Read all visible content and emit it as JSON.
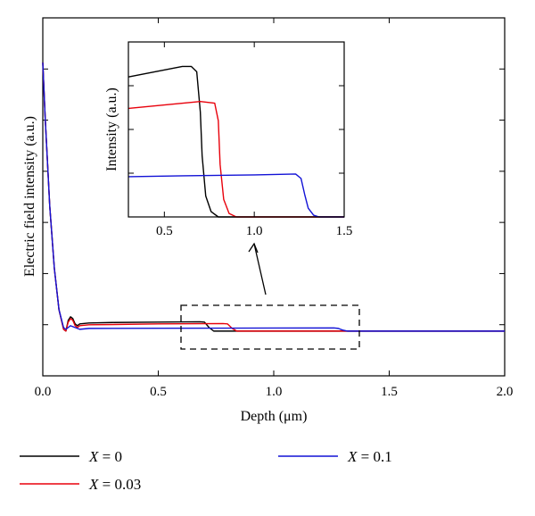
{
  "chart_data": [
    {
      "type": "line",
      "xlabel": "Depth (μm)",
      "ylabel": "Electric field intensity (a.u.)",
      "xlim": [
        0,
        2.0
      ],
      "ylim": [
        -0.25,
        1.75
      ],
      "xticks": [
        "0.0",
        "0.5",
        "1.0",
        "1.5",
        "2.0"
      ],
      "grid": false,
      "legend_placement": "below",
      "series": [
        {
          "name": "X = 0",
          "color": "#000000",
          "points": [
            [
              0,
              1.5
            ],
            [
              0.01,
              1.2
            ],
            [
              0.03,
              0.7
            ],
            [
              0.05,
              0.35
            ],
            [
              0.07,
              0.12
            ],
            [
              0.09,
              0.01
            ],
            [
              0.1,
              0.0
            ],
            [
              0.11,
              0.06
            ],
            [
              0.12,
              0.08
            ],
            [
              0.13,
              0.07
            ],
            [
              0.14,
              0.04
            ],
            [
              0.15,
              0.03
            ],
            [
              0.16,
              0.04
            ],
            [
              0.2,
              0.045
            ],
            [
              0.3,
              0.048
            ],
            [
              0.5,
              0.05
            ],
            [
              0.68,
              0.052
            ],
            [
              0.7,
              0.05
            ],
            [
              0.72,
              0.02
            ],
            [
              0.74,
              0.0
            ],
            [
              1.0,
              0.0
            ],
            [
              2.0,
              0.0
            ]
          ]
        },
        {
          "name": "X = 0.03",
          "color": "#e8000b",
          "points": [
            [
              0,
              1.5
            ],
            [
              0.01,
              1.2
            ],
            [
              0.03,
              0.7
            ],
            [
              0.05,
              0.35
            ],
            [
              0.07,
              0.12
            ],
            [
              0.09,
              0.01
            ],
            [
              0.1,
              0.0
            ],
            [
              0.11,
              0.05
            ],
            [
              0.12,
              0.07
            ],
            [
              0.13,
              0.06
            ],
            [
              0.14,
              0.03
            ],
            [
              0.15,
              0.02
            ],
            [
              0.16,
              0.03
            ],
            [
              0.2,
              0.035
            ],
            [
              0.5,
              0.04
            ],
            [
              0.78,
              0.042
            ],
            [
              0.8,
              0.04
            ],
            [
              0.82,
              0.015
            ],
            [
              0.84,
              0.0
            ],
            [
              1.0,
              0.0
            ],
            [
              2.0,
              0.0
            ]
          ]
        },
        {
          "name": "X = 0.1",
          "color": "#1212d6",
          "points": [
            [
              0,
              1.5
            ],
            [
              0.01,
              1.2
            ],
            [
              0.03,
              0.7
            ],
            [
              0.05,
              0.35
            ],
            [
              0.07,
              0.12
            ],
            [
              0.09,
              0.02
            ],
            [
              0.1,
              0.01
            ],
            [
              0.12,
              0.03
            ],
            [
              0.14,
              0.02
            ],
            [
              0.16,
              0.01
            ],
            [
              0.2,
              0.015
            ],
            [
              0.5,
              0.016
            ],
            [
              1.0,
              0.017
            ],
            [
              1.26,
              0.018
            ],
            [
              1.28,
              0.015
            ],
            [
              1.3,
              0.005
            ],
            [
              1.32,
              0.0
            ],
            [
              2.0,
              0.0
            ]
          ]
        }
      ]
    },
    {
      "type": "line",
      "xlabel": "",
      "ylabel": "Intensity (a.u.)",
      "xlim": [
        0.3,
        1.5
      ],
      "ylim": [
        0,
        1
      ],
      "xticks": [
        "0.5",
        "1.0",
        "1.5"
      ],
      "grid": false,
      "series": [
        {
          "name": "X = 0",
          "color": "#000000",
          "points": [
            [
              0.3,
              0.8
            ],
            [
              0.45,
              0.83
            ],
            [
              0.6,
              0.86
            ],
            [
              0.65,
              0.86
            ],
            [
              0.68,
              0.83
            ],
            [
              0.7,
              0.6
            ],
            [
              0.71,
              0.35
            ],
            [
              0.73,
              0.12
            ],
            [
              0.76,
              0.03
            ],
            [
              0.8,
              0.0
            ],
            [
              1.5,
              0.0
            ]
          ]
        },
        {
          "name": "X = 0.03",
          "color": "#e8000b",
          "points": [
            [
              0.3,
              0.62
            ],
            [
              0.5,
              0.64
            ],
            [
              0.7,
              0.66
            ],
            [
              0.78,
              0.65
            ],
            [
              0.8,
              0.55
            ],
            [
              0.81,
              0.3
            ],
            [
              0.83,
              0.1
            ],
            [
              0.86,
              0.02
            ],
            [
              0.9,
              0.0
            ],
            [
              1.5,
              0.0
            ]
          ]
        },
        {
          "name": "X = 0.1",
          "color": "#1212d6",
          "points": [
            [
              0.3,
              0.23
            ],
            [
              0.6,
              0.235
            ],
            [
              1.0,
              0.24
            ],
            [
              1.23,
              0.245
            ],
            [
              1.26,
              0.22
            ],
            [
              1.28,
              0.13
            ],
            [
              1.3,
              0.05
            ],
            [
              1.33,
              0.01
            ],
            [
              1.36,
              0.0
            ],
            [
              1.5,
              0.0
            ]
          ]
        }
      ]
    }
  ],
  "legend": [
    {
      "var": "X",
      "value": " = 0",
      "color": "#000000"
    },
    {
      "var": "X",
      "value": " = 0.03",
      "color": "#e8000b"
    },
    {
      "var": "X",
      "value": " = 0.1",
      "color": "#1212d6"
    }
  ]
}
